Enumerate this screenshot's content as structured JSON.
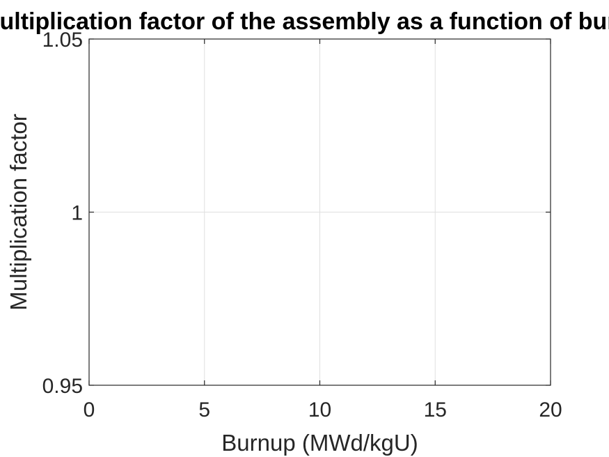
{
  "chart_data": {
    "type": "line",
    "title": "Multiplication factor of the assembly as a function of burnup",
    "xlabel": "Burnup (MWd/kgU)",
    "ylabel": "Multiplication factor",
    "xlim": [
      0,
      20
    ],
    "ylim": [
      0.95,
      1.05
    ],
    "x_ticks": [
      0,
      5,
      10,
      15,
      20
    ],
    "x_tick_labels": [
      "0",
      "5",
      "10",
      "15",
      "20"
    ],
    "y_ticks": [
      0.95,
      1,
      1.05
    ],
    "y_tick_labels": [
      "0.95",
      "1",
      "1.05"
    ],
    "grid": true,
    "series": []
  }
}
